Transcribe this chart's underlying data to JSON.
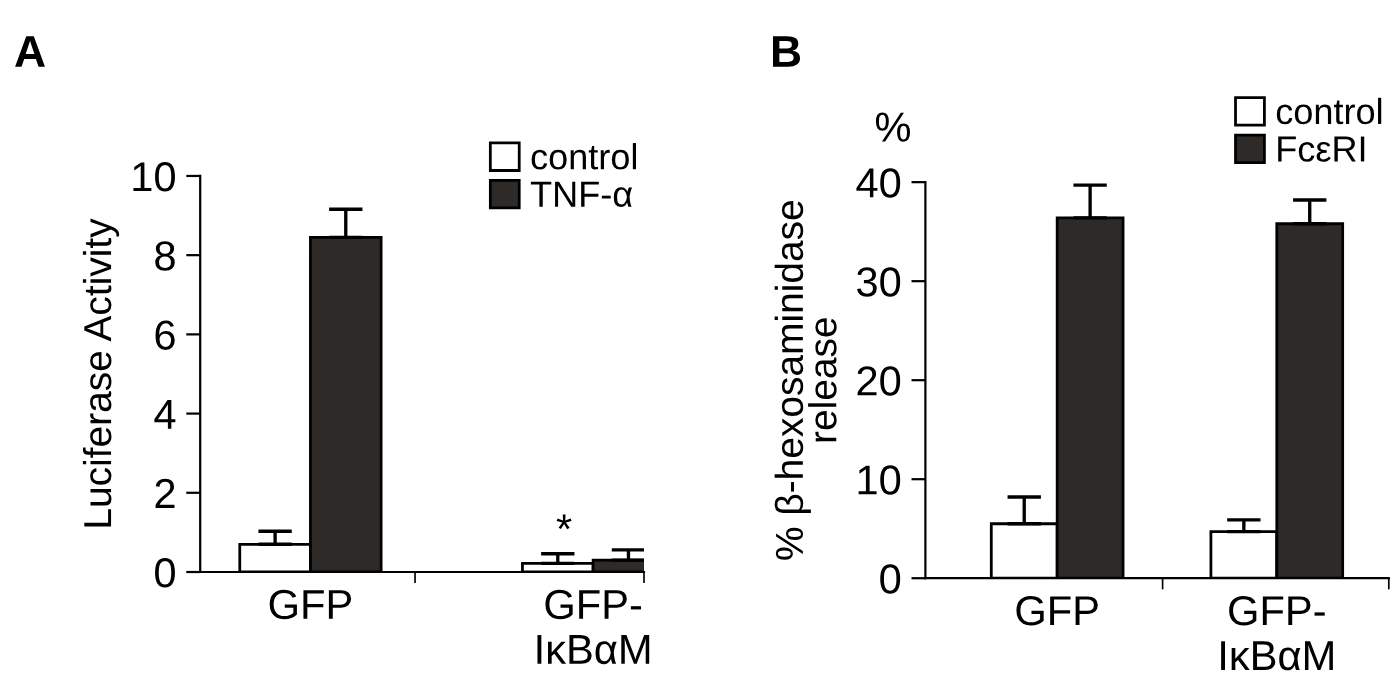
{
  "chart_data": [
    {
      "type": "bar",
      "title": "A",
      "ylabel": "Luciferase Activity",
      "categories": [
        "GFP",
        "GFP-\nIκBαM"
      ],
      "ylim": [
        0,
        10
      ],
      "yticks": [
        0,
        2,
        4,
        6,
        8,
        10
      ],
      "legend": "top right",
      "grid": false,
      "annotations": [
        "*"
      ],
      "series": [
        {
          "name": "control",
          "color": "#ffffff",
          "values": [
            0.7,
            0.22
          ],
          "errors": [
            0.33,
            0.24
          ]
        },
        {
          "name": "TNF-α",
          "color": "#2e2a28",
          "values": [
            8.45,
            0.3
          ],
          "errors": [
            0.71,
            0.26
          ]
        }
      ]
    },
    {
      "type": "bar",
      "title": "B",
      "ylabel": "% β-hexosaminidase\nrelease",
      "categories": [
        "GFP",
        "GFP-\nIκBαM"
      ],
      "ylim": [
        0,
        40
      ],
      "yticks": [
        0,
        10,
        20,
        30,
        40
      ],
      "legend": "top right",
      "grid": false,
      "annotations": [
        "%"
      ],
      "series": [
        {
          "name": "control",
          "color": "#ffffff",
          "values": [
            5.5,
            4.7
          ],
          "errors": [
            2.7,
            1.2
          ]
        },
        {
          "name": "FcεRI",
          "color": "#2e2a28",
          "values": [
            36.4,
            35.8
          ],
          "errors": [
            3.3,
            2.4
          ]
        }
      ]
    }
  ]
}
